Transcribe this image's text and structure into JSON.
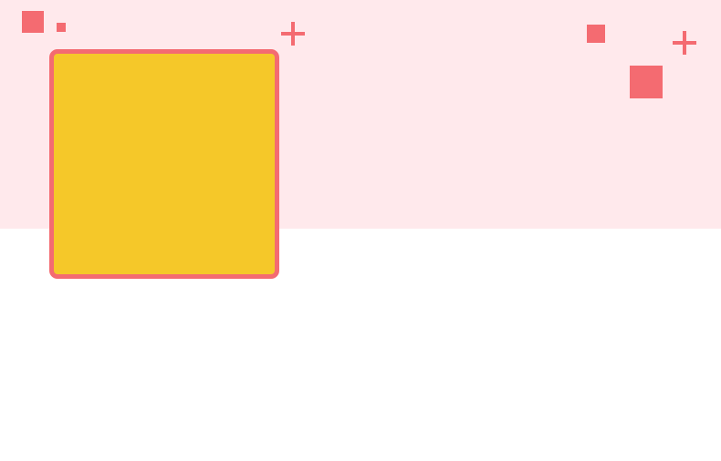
{
  "colors": {
    "banner_background": "#ffe9ec",
    "page_background": "#ffffff",
    "accent": "#f46b71",
    "card_fill": "#f5c829"
  },
  "decorations": {
    "squares": [
      "square-icon",
      "square-icon",
      "square-icon",
      "square-icon"
    ],
    "pluses": [
      "plus-icon",
      "plus-icon"
    ]
  }
}
